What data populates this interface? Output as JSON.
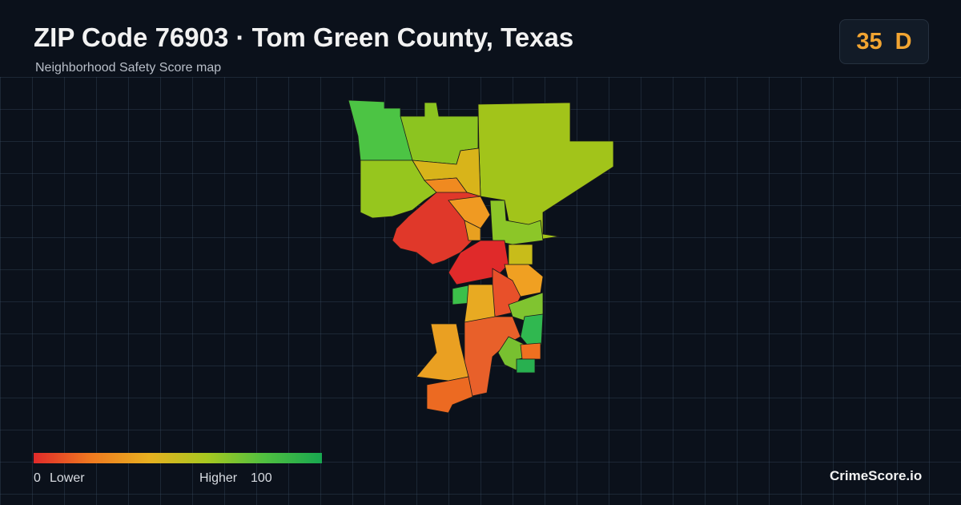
{
  "header": {
    "title": "ZIP Code 76903 · Tom Green County, Texas",
    "subtitle": "Neighborhood Safety Score map"
  },
  "badge": {
    "score": 35,
    "grade": "D"
  },
  "legend": {
    "min": 0,
    "min_label": "Lower",
    "max_label": "Higher",
    "max": 100
  },
  "footer": {
    "brand": "CrimeScore.io"
  }
}
